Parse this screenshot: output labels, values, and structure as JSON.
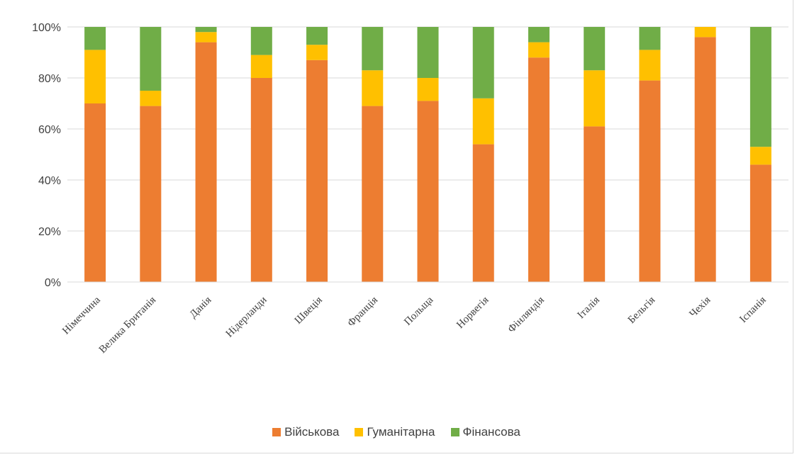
{
  "chart_data": {
    "type": "bar",
    "stacked": true,
    "percent": true,
    "categories": [
      "Німеччина",
      "Велика Британія",
      "Данія",
      "Нідерланди",
      "Швеція",
      "Франція",
      "Польща",
      "Норвегія",
      "Фінляндія",
      "Італія",
      "Бельгія",
      "Чехія",
      "Іспанія"
    ],
    "series": [
      {
        "name": "Військова",
        "color": "#ED7D31",
        "values": [
          70,
          69,
          94,
          80,
          87,
          69,
          71,
          54,
          88,
          61,
          79,
          96,
          46
        ]
      },
      {
        "name": "Гуманітарна",
        "color": "#FFC000",
        "values": [
          21,
          6,
          4,
          9,
          6,
          14,
          9,
          18,
          6,
          22,
          12,
          4,
          7
        ]
      },
      {
        "name": "Фінансова",
        "color": "#70AD47",
        "values": [
          9,
          25,
          2,
          11,
          7,
          17,
          20,
          28,
          6,
          17,
          9,
          0,
          47
        ]
      }
    ],
    "yticks": [
      "0%",
      "20%",
      "40%",
      "60%",
      "80%",
      "100%"
    ],
    "ylim": [
      0,
      100
    ],
    "grid": true,
    "legend_position": "bottom"
  }
}
